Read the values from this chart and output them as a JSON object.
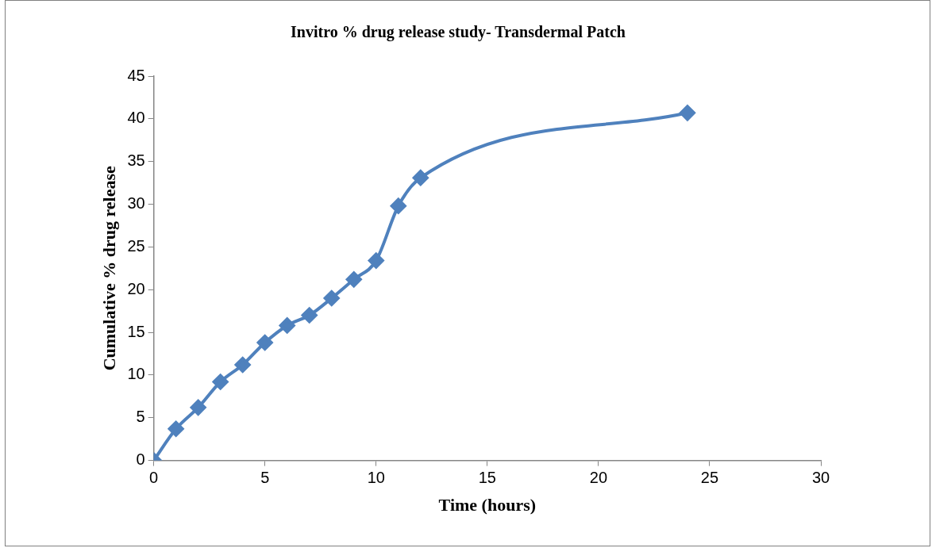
{
  "chart_data": {
    "type": "line",
    "title": "Invitro % drug release study- Transdermal Patch",
    "xlabel": "Time (hours)",
    "ylabel": "Cumulative % drug release",
    "x": [
      0,
      1,
      2,
      3,
      4,
      5,
      6,
      7,
      8,
      9,
      10,
      11,
      12,
      24
    ],
    "series": [
      {
        "color": "#4f81bd",
        "values": [
          0,
          3.7,
          6.2,
          9.2,
          11.2,
          13.8,
          15.8,
          17.0,
          19.0,
          21.2,
          23.4,
          29.8,
          33.1,
          40.7
        ]
      }
    ],
    "xlim": [
      0,
      30
    ],
    "xticks": [
      0,
      5,
      10,
      15,
      20,
      25,
      30
    ],
    "ylim": [
      0,
      45
    ],
    "yticks": [
      0,
      5,
      10,
      15,
      20,
      25,
      30,
      35,
      40,
      45
    ],
    "grid": false,
    "legend": false,
    "marker": "diamond",
    "line_style": "solid"
  }
}
